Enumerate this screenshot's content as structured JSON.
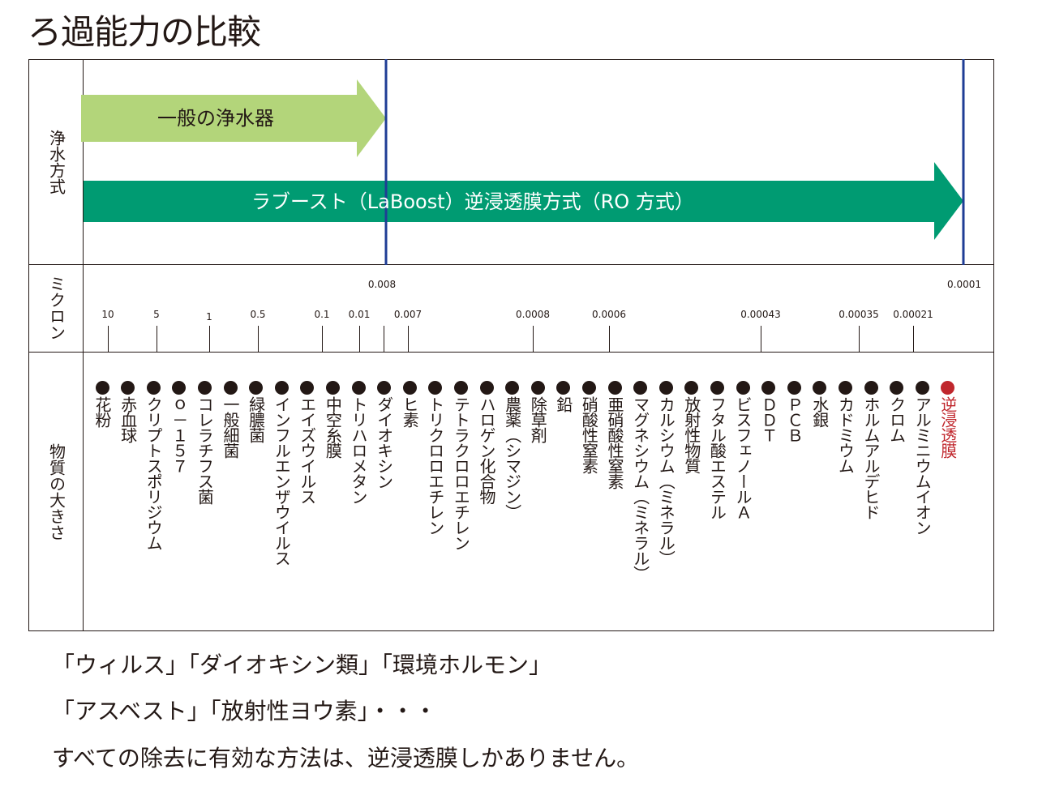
{
  "title": "ろ過能力の比較",
  "rows": {
    "method": "浄水方式",
    "micron": "ミクロン",
    "size": "物質の大きさ"
  },
  "arrows": {
    "general": "一般の浄水器",
    "laboost": "ラブースト（LaBoost）逆浸透膜方式（RO 方式）"
  },
  "colors": {
    "light_green": "#b3d57a",
    "dark_green": "#009b72",
    "blue_line": "#1f3d95",
    "red": "#c0272d",
    "text": "#231815"
  },
  "micron_upper": [
    "0.008",
    "0.0001"
  ],
  "micron_lower": [
    "10",
    "5",
    "1",
    "0.5",
    "0.1",
    "0.01",
    "0.007",
    "0.0008",
    "0.0006",
    "0.00043",
    "0.00035",
    "0.00021"
  ],
  "substances": [
    "花粉",
    "赤血球",
    "クリプトスポリジウム",
    "ｏ－１５７",
    "コレラチフス菌",
    "一般細菌",
    "緑膿菌",
    "インフルエンザウイルス",
    "エイズウイルス",
    "中空糸膜",
    "トリハロメタン",
    "ダイオキシン",
    "ヒ素",
    "トリクロロエチレン",
    "テトラクロロエチレン",
    "ハロゲン化合物",
    "農薬（シマジン）",
    "除草剤",
    "鉛",
    "硝酸性窒素",
    "亜硝酸性窒素",
    "マグネシウム（ミネラル）",
    "カルシウム（ミネラル）",
    "放射性物質",
    "フタル酸エステル",
    "ビスフェノールＡ",
    "ＤＤＴ",
    "ＰＣＢ",
    "水銀",
    "カドミウム",
    "ホルムアルデヒド",
    "クロム",
    "アルミニウムイオン",
    "逆浸透膜"
  ],
  "captions": [
    "「ウィルス」「ダイオキシン類」「環境ホルモン」",
    "「アスベスト」「放射性ヨウ素」・・・",
    "すべての除去に有効な方法は、逆浸透膜しかありません。"
  ]
}
